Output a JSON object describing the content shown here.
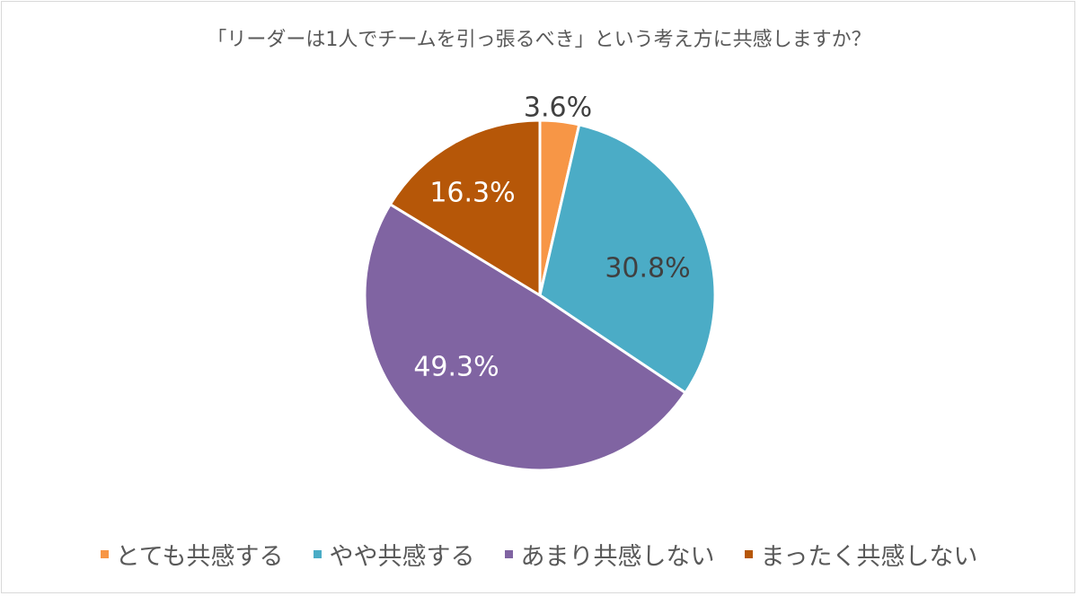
{
  "chart_data": {
    "type": "pie",
    "title": "「リーダーは1人でチームを引っ張るべき」という考え方に共感しますか？",
    "categories": [
      "とても共感する",
      "やや共感する",
      "あまり共感しない",
      "まったく共感しない"
    ],
    "values": [
      3.6,
      30.8,
      49.3,
      16.3
    ],
    "labels": [
      "3.6%",
      "30.8%",
      "49.3%",
      "16.3%"
    ],
    "colors": [
      "#f79646",
      "#4bacc6",
      "#8064a2",
      "#b65708"
    ],
    "start_angle_deg": 0,
    "direction": "clockwise",
    "legend_position": "bottom"
  },
  "legend": {
    "items": [
      {
        "label": "とても共感する",
        "color": "#f79646"
      },
      {
        "label": "やや共感する",
        "color": "#4bacc6"
      },
      {
        "label": "あまり共感しない",
        "color": "#8064a2"
      },
      {
        "label": "まったく共感しない",
        "color": "#b65708"
      }
    ]
  }
}
